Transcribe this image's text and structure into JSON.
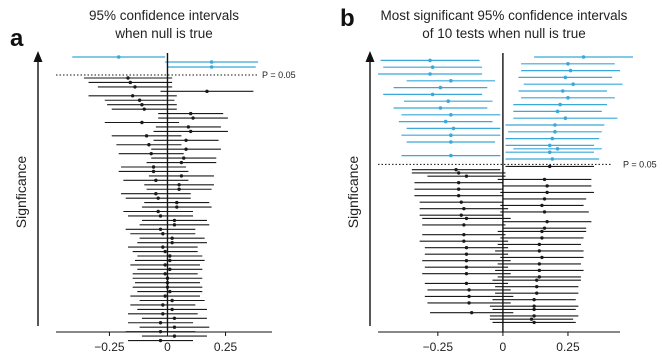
{
  "y_axis_label": "Signficance",
  "chart_data": [
    {
      "type": "interval",
      "panel": "a",
      "title_lines": [
        "95% confidence intervals",
        "when null is true"
      ],
      "ylabel": "Signficance",
      "xlim": [
        -0.48,
        0.45
      ],
      "xticks": [
        -0.25,
        0,
        0.25
      ],
      "xtick_labels": [
        "−0.25",
        "0",
        "0.25"
      ],
      "threshold_label": "P = 0.05",
      "colors": {
        "significant": "#3aa8da",
        "nonsignificant": "#1a1a1a"
      },
      "significant_intervals": [
        {
          "center": -0.21,
          "halfwidth": 0.2
        },
        {
          "center": 0.19,
          "halfwidth": 0.2
        },
        {
          "center": 0.19,
          "halfwidth": 0.19
        }
      ],
      "nonsignificant_intervals": [
        {
          "center": -0.17,
          "halfwidth": 0.19
        },
        {
          "center": -0.16,
          "halfwidth": 0.18
        },
        {
          "center": -0.14,
          "halfwidth": 0.16
        },
        {
          "center": 0.17,
          "halfwidth": 0.2
        },
        {
          "center": -0.15,
          "halfwidth": 0.19
        },
        {
          "center": -0.12,
          "halfwidth": 0.15
        },
        {
          "center": -0.11,
          "halfwidth": 0.15
        },
        {
          "center": -0.1,
          "halfwidth": 0.14
        },
        {
          "center": 0.1,
          "halfwidth": 0.14
        },
        {
          "center": 0.11,
          "halfwidth": 0.15
        },
        {
          "center": -0.11,
          "halfwidth": 0.16
        },
        {
          "center": 0.09,
          "halfwidth": 0.14
        },
        {
          "center": 0.1,
          "halfwidth": 0.16
        },
        {
          "center": -0.09,
          "halfwidth": 0.15
        },
        {
          "center": 0.08,
          "halfwidth": 0.14
        },
        {
          "center": -0.08,
          "halfwidth": 0.14
        },
        {
          "center": 0.08,
          "halfwidth": 0.15
        },
        {
          "center": -0.07,
          "halfwidth": 0.14
        },
        {
          "center": 0.07,
          "halfwidth": 0.14
        },
        {
          "center": 0.06,
          "halfwidth": 0.15
        },
        {
          "center": -0.06,
          "halfwidth": 0.14
        },
        {
          "center": -0.06,
          "halfwidth": 0.15
        },
        {
          "center": 0.06,
          "halfwidth": 0.14
        },
        {
          "center": -0.05,
          "halfwidth": 0.14
        },
        {
          "center": 0.05,
          "halfwidth": 0.15
        },
        {
          "center": 0.05,
          "halfwidth": 0.14
        },
        {
          "center": -0.05,
          "halfwidth": 0.15
        },
        {
          "center": -0.04,
          "halfwidth": 0.14
        },
        {
          "center": 0.04,
          "halfwidth": 0.14
        },
        {
          "center": 0.04,
          "halfwidth": 0.15
        },
        {
          "center": -0.04,
          "halfwidth": 0.15
        },
        {
          "center": -0.03,
          "halfwidth": 0.14
        },
        {
          "center": 0.03,
          "halfwidth": 0.14
        },
        {
          "center": 0.03,
          "halfwidth": 0.15
        },
        {
          "center": -0.03,
          "halfwidth": 0.15
        },
        {
          "center": -0.02,
          "halfwidth": 0.14
        },
        {
          "center": 0.02,
          "halfwidth": 0.14
        },
        {
          "center": 0.02,
          "halfwidth": 0.15
        },
        {
          "center": -0.02,
          "halfwidth": 0.15
        },
        {
          "center": -0.01,
          "halfwidth": 0.14
        },
        {
          "center": 0.01,
          "halfwidth": 0.14
        },
        {
          "center": 0.01,
          "halfwidth": 0.15
        },
        {
          "center": -0.01,
          "halfwidth": 0.15
        },
        {
          "center": 0.01,
          "halfwidth": 0.14
        },
        {
          "center": -0.01,
          "halfwidth": 0.14
        },
        {
          "center": 0.0,
          "halfwidth": 0.15
        },
        {
          "center": 0.0,
          "halfwidth": 0.14
        },
        {
          "center": 0.0,
          "halfwidth": 0.15
        },
        {
          "center": 0.01,
          "halfwidth": 0.14
        },
        {
          "center": -0.01,
          "halfwidth": 0.15
        },
        {
          "center": 0.02,
          "halfwidth": 0.14
        },
        {
          "center": -0.02,
          "halfwidth": 0.14
        },
        {
          "center": 0.02,
          "halfwidth": 0.15
        },
        {
          "center": -0.02,
          "halfwidth": 0.15
        },
        {
          "center": 0.03,
          "halfwidth": 0.14
        },
        {
          "center": -0.03,
          "halfwidth": 0.14
        },
        {
          "center": 0.03,
          "halfwidth": 0.15
        },
        {
          "center": -0.03,
          "halfwidth": 0.15
        },
        {
          "center": 0.03,
          "halfwidth": 0.14
        },
        {
          "center": -0.03,
          "halfwidth": 0.14
        }
      ]
    },
    {
      "type": "interval",
      "panel": "b",
      "title_lines": [
        "Most significant 95% confidence intervals",
        "of 10 tests when null is true"
      ],
      "ylabel": "Signficance",
      "xlim": [
        -0.48,
        0.45
      ],
      "xticks": [
        -0.25,
        0,
        0.25
      ],
      "xtick_labels": [
        "−0.25",
        "0",
        "0.25"
      ],
      "threshold_label": "P = 0.05",
      "colors": {
        "significant": "#3aa8da",
        "nonsignificant": "#1a1a1a"
      },
      "significant_intervals": [
        {
          "center": 0.31,
          "halfwidth": 0.19
        },
        {
          "center": -0.28,
          "halfwidth": 0.19
        },
        {
          "center": 0.25,
          "halfwidth": 0.18
        },
        {
          "center": -0.27,
          "halfwidth": 0.19
        },
        {
          "center": 0.26,
          "halfwidth": 0.19
        },
        {
          "center": -0.28,
          "halfwidth": 0.2
        },
        {
          "center": 0.24,
          "halfwidth": 0.18
        },
        {
          "center": -0.2,
          "halfwidth": 0.17
        },
        {
          "center": 0.27,
          "halfwidth": 0.19
        },
        {
          "center": -0.24,
          "halfwidth": 0.18
        },
        {
          "center": 0.23,
          "halfwidth": 0.17
        },
        {
          "center": -0.27,
          "halfwidth": 0.19
        },
        {
          "center": 0.25,
          "halfwidth": 0.18
        },
        {
          "center": -0.21,
          "halfwidth": 0.17
        },
        {
          "center": 0.22,
          "halfwidth": 0.18
        },
        {
          "center": -0.24,
          "halfwidth": 0.18
        },
        {
          "center": 0.21,
          "halfwidth": 0.17
        },
        {
          "center": -0.2,
          "halfwidth": 0.19
        },
        {
          "center": 0.24,
          "halfwidth": 0.2
        },
        {
          "center": -0.22,
          "halfwidth": 0.18
        },
        {
          "center": 0.2,
          "halfwidth": 0.19
        },
        {
          "center": -0.19,
          "halfwidth": 0.18
        },
        {
          "center": 0.2,
          "halfwidth": 0.18
        },
        {
          "center": -0.2,
          "halfwidth": 0.19
        },
        {
          "center": 0.19,
          "halfwidth": 0.18
        },
        {
          "center": -0.2,
          "halfwidth": 0.17
        },
        {
          "center": 0.18,
          "halfwidth": 0.17
        },
        {
          "center": 0.21,
          "halfwidth": 0.17
        },
        {
          "center": 0.18,
          "halfwidth": 0.17
        },
        {
          "center": -0.2,
          "halfwidth": 0.19
        },
        {
          "center": 0.19,
          "halfwidth": 0.18
        }
      ],
      "nonsignificant_intervals": [
        {
          "center": 0.18,
          "halfwidth": 0.17
        },
        {
          "center": -0.18,
          "halfwidth": 0.17
        },
        {
          "center": -0.17,
          "halfwidth": 0.18
        },
        {
          "center": -0.14,
          "halfwidth": 0.15
        },
        {
          "center": 0.16,
          "halfwidth": 0.18
        },
        {
          "center": -0.17,
          "halfwidth": 0.17
        },
        {
          "center": 0.17,
          "halfwidth": 0.17
        },
        {
          "center": -0.17,
          "halfwidth": 0.17
        },
        {
          "center": 0.17,
          "halfwidth": 0.18
        },
        {
          "center": -0.17,
          "halfwidth": 0.17
        },
        {
          "center": 0.16,
          "halfwidth": 0.16
        },
        {
          "center": -0.16,
          "halfwidth": 0.16
        },
        {
          "center": 0.15,
          "halfwidth": 0.16
        },
        {
          "center": -0.15,
          "halfwidth": 0.17
        },
        {
          "center": 0.16,
          "halfwidth": 0.17
        },
        {
          "center": -0.16,
          "halfwidth": 0.16
        },
        {
          "center": -0.14,
          "halfwidth": 0.17
        },
        {
          "center": 0.17,
          "halfwidth": 0.17
        },
        {
          "center": -0.15,
          "halfwidth": 0.16
        },
        {
          "center": 0.16,
          "halfwidth": 0.16
        },
        {
          "center": 0.15,
          "halfwidth": 0.17
        },
        {
          "center": -0.15,
          "halfwidth": 0.16
        },
        {
          "center": 0.15,
          "halfwidth": 0.16
        },
        {
          "center": -0.15,
          "halfwidth": 0.17
        },
        {
          "center": 0.14,
          "halfwidth": 0.16
        },
        {
          "center": -0.14,
          "halfwidth": 0.16
        },
        {
          "center": 0.14,
          "halfwidth": 0.17
        },
        {
          "center": -0.14,
          "halfwidth": 0.16
        },
        {
          "center": 0.15,
          "halfwidth": 0.16
        },
        {
          "center": -0.14,
          "halfwidth": 0.17
        },
        {
          "center": 0.14,
          "halfwidth": 0.16
        },
        {
          "center": -0.14,
          "halfwidth": 0.16
        },
        {
          "center": 0.14,
          "halfwidth": 0.17
        },
        {
          "center": -0.14,
          "halfwidth": 0.17
        },
        {
          "center": 0.14,
          "halfwidth": 0.16
        },
        {
          "center": 0.13,
          "halfwidth": 0.17
        },
        {
          "center": -0.14,
          "halfwidth": 0.16
        },
        {
          "center": 0.13,
          "halfwidth": 0.16
        },
        {
          "center": -0.13,
          "halfwidth": 0.16
        },
        {
          "center": 0.13,
          "halfwidth": 0.16
        },
        {
          "center": -0.13,
          "halfwidth": 0.17
        },
        {
          "center": 0.12,
          "halfwidth": 0.16
        },
        {
          "center": -0.13,
          "halfwidth": 0.16
        },
        {
          "center": 0.12,
          "halfwidth": 0.17
        },
        {
          "center": 0.12,
          "halfwidth": 0.16
        },
        {
          "center": -0.12,
          "halfwidth": 0.16
        },
        {
          "center": 0.12,
          "halfwidth": 0.17
        },
        {
          "center": 0.11,
          "halfwidth": 0.16
        },
        {
          "center": 0.12,
          "halfwidth": 0.16
        }
      ]
    }
  ]
}
